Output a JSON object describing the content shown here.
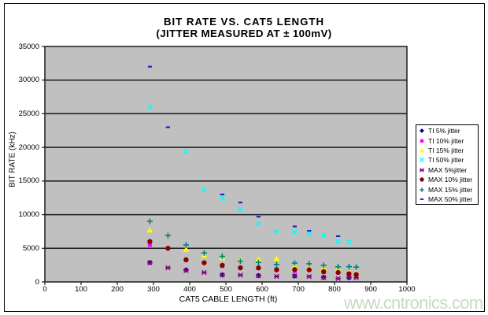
{
  "chart_data": {
    "type": "scatter",
    "title": "BIT RATE VS. CAT5 LENGTH",
    "subtitle": "(JITTER MEASURED AT ± 100mV)",
    "xlabel": "CAT5 CABLE LENGTH (ft)",
    "ylabel": "BIT RATE (kHz)",
    "xlim": [
      0,
      1000
    ],
    "ylim": [
      0,
      35000
    ],
    "xticks": [
      0,
      100,
      200,
      300,
      400,
      500,
      600,
      700,
      800,
      900,
      1000
    ],
    "yticks": [
      0,
      5000,
      10000,
      15000,
      20000,
      25000,
      30000,
      35000
    ],
    "grid": "horizontal",
    "plot_bg": "#c0c0c0",
    "grid_color": "#1c1c1c",
    "legend_position": "right",
    "series": [
      {
        "name": "TI 5% jitter",
        "marker": "diamond",
        "color": "#000080",
        "points": [
          [
            290,
            2900
          ],
          [
            390,
            1780
          ],
          [
            490,
            1060
          ],
          [
            590,
            950
          ],
          [
            690,
            860
          ],
          [
            770,
            700
          ],
          [
            840,
            620
          ]
        ]
      },
      {
        "name": "TI 10% jitter",
        "marker": "square",
        "color": "#ff00ff",
        "points": [
          [
            290,
            5500
          ],
          [
            390,
            3250
          ],
          [
            490,
            2380
          ],
          [
            590,
            2050
          ],
          [
            640,
            1850
          ],
          [
            690,
            1620
          ],
          [
            770,
            1450
          ],
          [
            840,
            1150
          ]
        ]
      },
      {
        "name": "TI 15% jitter",
        "marker": "triangle",
        "color": "#ffff00",
        "points": [
          [
            290,
            7700
          ],
          [
            390,
            4850
          ],
          [
            440,
            3950
          ],
          [
            490,
            3600
          ],
          [
            540,
            3350
          ],
          [
            590,
            3370
          ],
          [
            640,
            3450
          ],
          [
            690,
            2320
          ],
          [
            730,
            2200
          ],
          [
            770,
            2000
          ],
          [
            810,
            1900
          ],
          [
            840,
            1420
          ],
          [
            860,
            1340
          ]
        ]
      },
      {
        "name": "TI 50% jitter",
        "marker": "x",
        "color": "#00ffff",
        "points": [
          [
            290,
            26000
          ],
          [
            390,
            19400
          ],
          [
            440,
            13700
          ],
          [
            490,
            12400
          ],
          [
            540,
            10800
          ],
          [
            590,
            8650
          ],
          [
            640,
            7470
          ],
          [
            690,
            7400
          ],
          [
            730,
            7100
          ],
          [
            770,
            6960
          ],
          [
            810,
            6020
          ],
          [
            840,
            5900
          ]
        ]
      },
      {
        "name": "MAX 5%jitter",
        "marker": "star",
        "color": "#800080",
        "points": [
          [
            290,
            2850
          ],
          [
            340,
            2100
          ],
          [
            390,
            1700
          ],
          [
            440,
            1400
          ],
          [
            490,
            1020
          ],
          [
            540,
            1020
          ],
          [
            590,
            900
          ],
          [
            640,
            820
          ],
          [
            690,
            900
          ],
          [
            730,
            800
          ],
          [
            770,
            620
          ],
          [
            810,
            500
          ],
          [
            840,
            700
          ],
          [
            860,
            620
          ]
        ]
      },
      {
        "name": "MAX 10% jitter",
        "marker": "circle",
        "color": "#8b0000",
        "points": [
          [
            290,
            6000
          ],
          [
            340,
            5000
          ],
          [
            390,
            3300
          ],
          [
            440,
            2850
          ],
          [
            490,
            2460
          ],
          [
            540,
            2100
          ],
          [
            590,
            2080
          ],
          [
            640,
            1800
          ],
          [
            690,
            1840
          ],
          [
            730,
            1800
          ],
          [
            770,
            1530
          ],
          [
            810,
            1410
          ],
          [
            840,
            1210
          ],
          [
            860,
            1100
          ]
        ]
      },
      {
        "name": "MAX 15% jitter",
        "marker": "plus",
        "color": "#008080",
        "points": [
          [
            290,
            9000
          ],
          [
            340,
            6900
          ],
          [
            390,
            5500
          ],
          [
            440,
            4300
          ],
          [
            490,
            3800
          ],
          [
            540,
            3100
          ],
          [
            590,
            2900
          ],
          [
            640,
            2600
          ],
          [
            690,
            2800
          ],
          [
            730,
            2700
          ],
          [
            770,
            2460
          ],
          [
            810,
            2250
          ],
          [
            840,
            2270
          ],
          [
            860,
            2200
          ]
        ]
      },
      {
        "name": "MAX 50% jitter",
        "marker": "dash",
        "color": "#2222cc",
        "points": [
          [
            290,
            32000
          ],
          [
            340,
            23000
          ],
          [
            490,
            13000
          ],
          [
            540,
            11800
          ],
          [
            590,
            9700
          ],
          [
            690,
            8250
          ],
          [
            730,
            7600
          ],
          [
            810,
            6800
          ]
        ]
      }
    ]
  },
  "watermark": {
    "text": "www.cntronics.com",
    "color": "#c6dcc2"
  }
}
